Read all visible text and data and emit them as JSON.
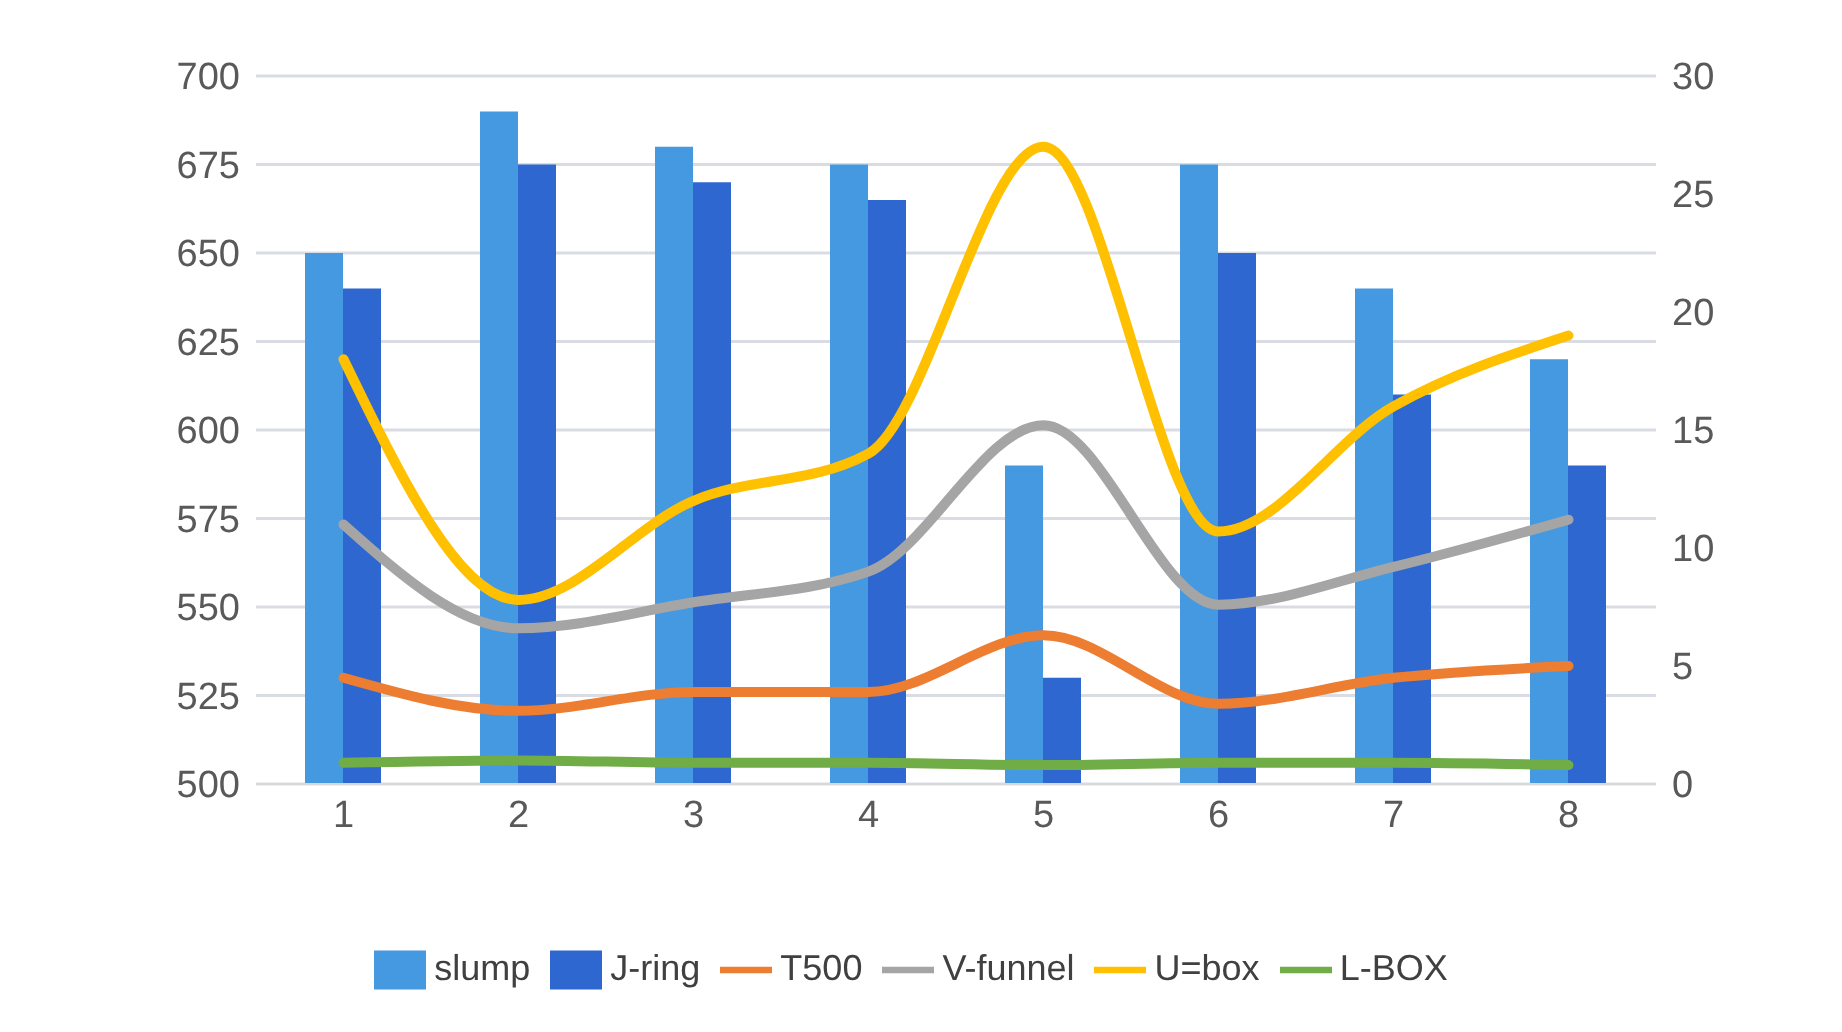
{
  "chart_data": {
    "type": "bar",
    "categories": [
      "1",
      "2",
      "3",
      "4",
      "5",
      "6",
      "7",
      "8"
    ],
    "series": [
      {
        "name": "slump",
        "color": "#4499e0",
        "values": [
          650,
          690,
          680,
          675,
          590,
          675,
          640,
          620
        ]
      },
      {
        "name": "J-ring",
        "color": "#2d67cf",
        "values": [
          640,
          675,
          670,
          665,
          530,
          650,
          610,
          590
        ]
      },
      {
        "name": "T500",
        "type": "line",
        "axis": "y2",
        "color": "#ed7d31",
        "values": [
          4.5,
          3.1,
          3.9,
          3.9,
          6.3,
          3.4,
          4.5,
          5
        ]
      },
      {
        "name": "V-funnel",
        "type": "line",
        "axis": "y2",
        "color": "#a5a5a5",
        "values": [
          11,
          6.6,
          7.7,
          9,
          15.2,
          7.6,
          9.2,
          11.2
        ]
      },
      {
        "name": "U=box",
        "type": "line",
        "axis": "y2",
        "color": "#ffc000",
        "values": [
          18,
          7.8,
          12,
          14,
          27,
          10.7,
          16,
          19
        ]
      },
      {
        "name": "L-BOX",
        "type": "line",
        "axis": "y2",
        "color": "#70ad47",
        "values": [
          0.9,
          1,
          0.9,
          0.9,
          0.8,
          0.9,
          0.9,
          0.8
        ]
      }
    ],
    "ylim": [
      500,
      700
    ],
    "yticks": [
      500,
      525,
      550,
      575,
      600,
      625,
      650,
      675,
      700
    ],
    "y2lim": [
      0,
      30
    ],
    "y2ticks": [
      0,
      5,
      10,
      15,
      20,
      25,
      30
    ],
    "grid": "y",
    "legend": "bottom",
    "marker": "none",
    "line_style": "solid"
  }
}
